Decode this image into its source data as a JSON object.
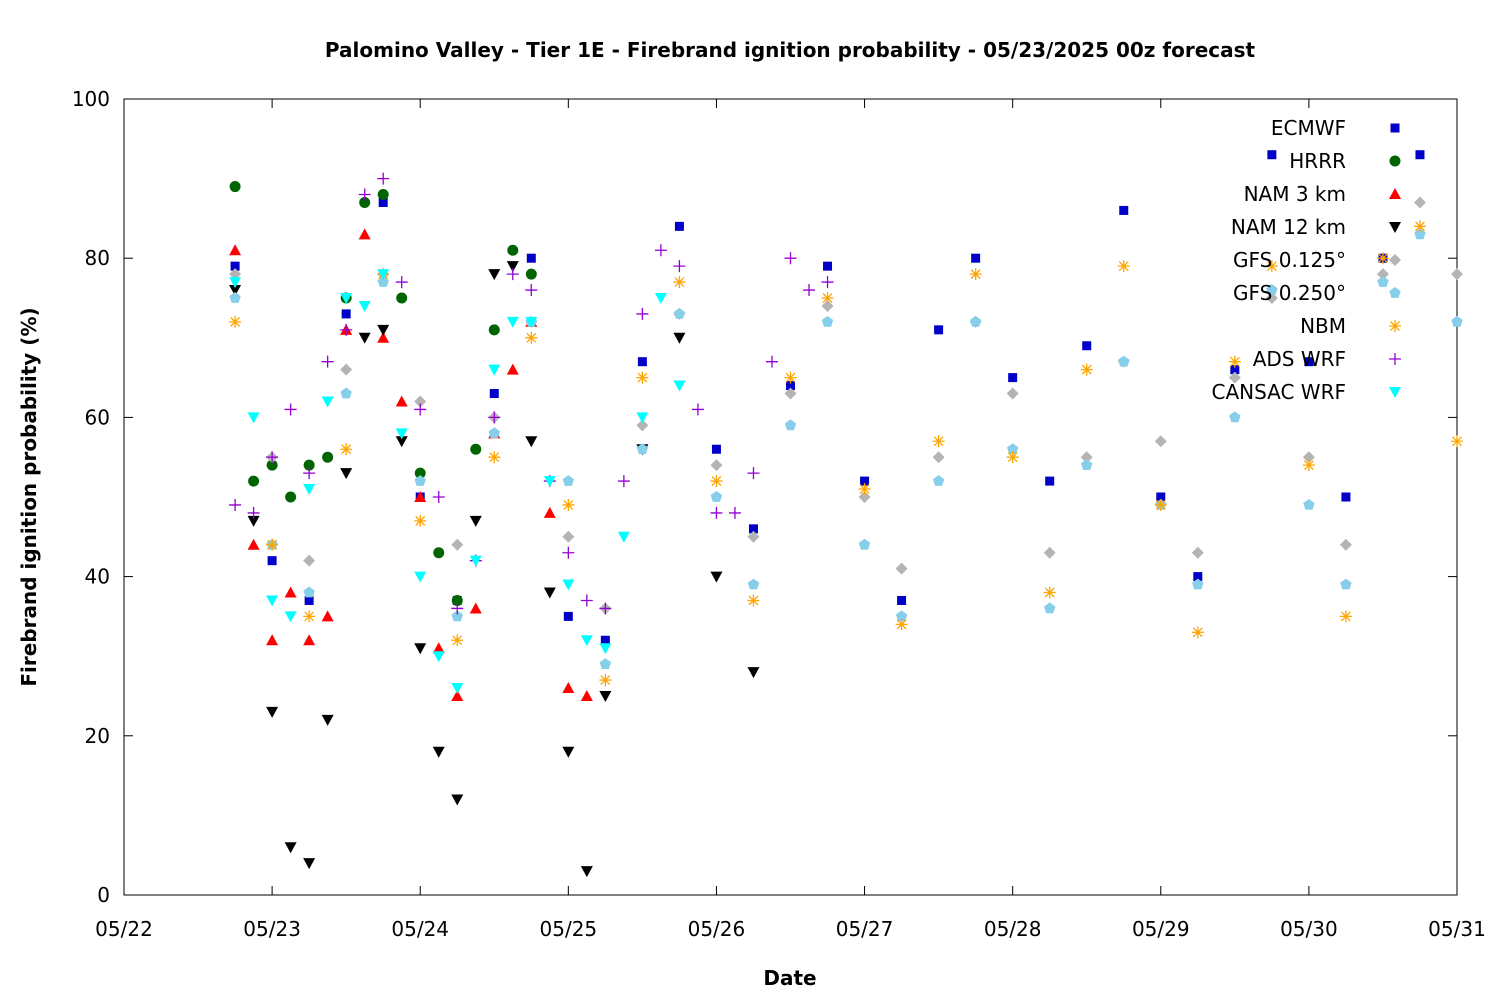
{
  "chart_data": {
    "type": "scatter",
    "title": "Palomino Valley - Tier 1E - Firebrand ignition probability - 05/23/2025 00z forecast",
    "xlabel": "Date",
    "ylabel": "Firebrand ignition probability (%)",
    "xlim": [
      "2025-05-22T00:00",
      "2025-05-31T00:00"
    ],
    "ylim": [
      0,
      100
    ],
    "x_ticks": [
      "05/22",
      "05/23",
      "05/24",
      "05/25",
      "05/26",
      "05/27",
      "05/28",
      "05/29",
      "05/30",
      "05/31"
    ],
    "y_ticks": [
      0,
      20,
      40,
      60,
      80,
      100
    ],
    "grid": false,
    "legend_position": "top-right",
    "series": [
      {
        "name": "ECMWF",
        "color": "#0000c8",
        "marker": "square",
        "x": [
          "2025-05-22T18:00",
          "2025-05-23T00:00",
          "2025-05-23T06:00",
          "2025-05-23T12:00",
          "2025-05-23T18:00",
          "2025-05-24T00:00",
          "2025-05-24T06:00",
          "2025-05-24T12:00",
          "2025-05-24T18:00",
          "2025-05-25T00:00",
          "2025-05-25T06:00",
          "2025-05-25T12:00",
          "2025-05-25T18:00",
          "2025-05-26T00:00",
          "2025-05-26T06:00",
          "2025-05-26T12:00",
          "2025-05-26T18:00",
          "2025-05-27T00:00",
          "2025-05-27T06:00",
          "2025-05-27T12:00",
          "2025-05-27T18:00",
          "2025-05-28T00:00",
          "2025-05-28T06:00",
          "2025-05-28T12:00",
          "2025-05-28T18:00",
          "2025-05-29T00:00",
          "2025-05-29T06:00",
          "2025-05-29T12:00",
          "2025-05-29T18:00",
          "2025-05-30T00:00",
          "2025-05-30T06:00",
          "2025-05-30T12:00",
          "2025-05-30T18:00"
        ],
        "y": [
          79,
          42,
          37,
          73,
          87,
          50,
          37,
          63,
          80,
          35,
          32,
          67,
          84,
          56,
          46,
          64,
          79,
          52,
          37,
          71,
          80,
          65,
          52,
          69,
          86,
          50,
          40,
          66,
          93,
          67,
          50,
          80,
          93
        ]
      },
      {
        "name": "HRRR",
        "color": "#006400",
        "marker": "circle",
        "x": [
          "2025-05-22T18:00",
          "2025-05-22T21:00",
          "2025-05-23T00:00",
          "2025-05-23T03:00",
          "2025-05-23T06:00",
          "2025-05-23T09:00",
          "2025-05-23T12:00",
          "2025-05-23T15:00",
          "2025-05-23T18:00",
          "2025-05-23T21:00",
          "2025-05-24T00:00",
          "2025-05-24T03:00",
          "2025-05-24T06:00",
          "2025-05-24T09:00",
          "2025-05-24T12:00",
          "2025-05-24T15:00",
          "2025-05-24T18:00"
        ],
        "y": [
          89,
          52,
          54,
          50,
          54,
          55,
          75,
          87,
          88,
          75,
          53,
          43,
          37,
          56,
          71,
          81,
          78
        ]
      },
      {
        "name": "NAM 3 km",
        "color": "#ff0000",
        "marker": "triangle-up",
        "x": [
          "2025-05-22T18:00",
          "2025-05-22T21:00",
          "2025-05-23T00:00",
          "2025-05-23T03:00",
          "2025-05-23T06:00",
          "2025-05-23T09:00",
          "2025-05-23T12:00",
          "2025-05-23T15:00",
          "2025-05-23T18:00",
          "2025-05-23T21:00",
          "2025-05-24T00:00",
          "2025-05-24T03:00",
          "2025-05-24T06:00",
          "2025-05-24T09:00",
          "2025-05-24T12:00",
          "2025-05-24T15:00",
          "2025-05-24T18:00",
          "2025-05-24T21:00",
          "2025-05-25T00:00",
          "2025-05-25T03:00"
        ],
        "y": [
          81,
          44,
          32,
          38,
          32,
          35,
          71,
          83,
          70,
          62,
          50,
          31,
          25,
          36,
          58,
          66,
          72,
          48,
          26,
          25
        ]
      },
      {
        "name": "NAM 12 km",
        "color": "#000000",
        "marker": "triangle-down",
        "x": [
          "2025-05-22T18:00",
          "2025-05-22T21:00",
          "2025-05-23T00:00",
          "2025-05-23T03:00",
          "2025-05-23T06:00",
          "2025-05-23T09:00",
          "2025-05-23T12:00",
          "2025-05-23T15:00",
          "2025-05-23T18:00",
          "2025-05-23T21:00",
          "2025-05-24T00:00",
          "2025-05-24T03:00",
          "2025-05-24T06:00",
          "2025-05-24T09:00",
          "2025-05-24T12:00",
          "2025-05-24T15:00",
          "2025-05-24T18:00",
          "2025-05-24T21:00",
          "2025-05-25T00:00",
          "2025-05-25T03:00",
          "2025-05-25T06:00",
          "2025-05-25T12:00",
          "2025-05-25T18:00",
          "2025-05-26T00:00",
          "2025-05-26T06:00"
        ],
        "y": [
          76,
          47,
          23,
          6,
          4,
          22,
          53,
          70,
          71,
          57,
          31,
          18,
          12,
          47,
          78,
          79,
          57,
          38,
          18,
          3,
          25,
          56,
          70,
          40,
          28
        ]
      },
      {
        "name": "GFS 0.125°",
        "color": "#b4b4b4",
        "marker": "diamond",
        "x": [
          "2025-05-22T18:00",
          "2025-05-23T00:00",
          "2025-05-23T06:00",
          "2025-05-23T12:00",
          "2025-05-23T18:00",
          "2025-05-24T00:00",
          "2025-05-24T06:00",
          "2025-05-24T12:00",
          "2025-05-24T18:00",
          "2025-05-25T00:00",
          "2025-05-25T06:00",
          "2025-05-25T12:00",
          "2025-05-25T18:00",
          "2025-05-26T00:00",
          "2025-05-26T06:00",
          "2025-05-26T12:00",
          "2025-05-26T18:00",
          "2025-05-27T00:00",
          "2025-05-27T06:00",
          "2025-05-27T12:00",
          "2025-05-27T18:00",
          "2025-05-28T00:00",
          "2025-05-28T06:00",
          "2025-05-28T12:00",
          "2025-05-28T18:00",
          "2025-05-29T00:00",
          "2025-05-29T06:00",
          "2025-05-29T12:00",
          "2025-05-29T18:00",
          "2025-05-30T00:00",
          "2025-05-30T06:00",
          "2025-05-30T12:00",
          "2025-05-30T18:00",
          "2025-05-31T00:00"
        ],
        "y": [
          78,
          55,
          42,
          66,
          78,
          62,
          44,
          60,
          72,
          45,
          36,
          59,
          73,
          54,
          45,
          63,
          74,
          50,
          41,
          55,
          72,
          63,
          43,
          55,
          67,
          57,
          43,
          65,
          75,
          55,
          44,
          78,
          87,
          78
        ]
      },
      {
        "name": "GFS 0.250°",
        "color": "#87ceeb",
        "marker": "pentagon",
        "x": [
          "2025-05-22T18:00",
          "2025-05-23T00:00",
          "2025-05-23T06:00",
          "2025-05-23T12:00",
          "2025-05-23T18:00",
          "2025-05-24T00:00",
          "2025-05-24T06:00",
          "2025-05-24T12:00",
          "2025-05-24T18:00",
          "2025-05-25T00:00",
          "2025-05-25T06:00",
          "2025-05-25T12:00",
          "2025-05-25T18:00",
          "2025-05-26T00:00",
          "2025-05-26T06:00",
          "2025-05-26T12:00",
          "2025-05-26T18:00",
          "2025-05-27T00:00",
          "2025-05-27T06:00",
          "2025-05-27T12:00",
          "2025-05-27T18:00",
          "2025-05-28T00:00",
          "2025-05-28T06:00",
          "2025-05-28T12:00",
          "2025-05-28T18:00",
          "2025-05-29T00:00",
          "2025-05-29T06:00",
          "2025-05-29T12:00",
          "2025-05-29T18:00",
          "2025-05-30T00:00",
          "2025-05-30T06:00",
          "2025-05-30T12:00",
          "2025-05-30T18:00",
          "2025-05-31T00:00"
        ],
        "y": [
          75,
          44,
          38,
          63,
          77,
          52,
          35,
          58,
          72,
          52,
          29,
          56,
          73,
          50,
          39,
          59,
          72,
          44,
          35,
          52,
          72,
          56,
          36,
          54,
          67,
          49,
          39,
          60,
          76,
          49,
          39,
          77,
          83,
          72
        ]
      },
      {
        "name": "NBM",
        "color": "#ffa500",
        "marker": "asterisk",
        "x": [
          "2025-05-22T18:00",
          "2025-05-23T00:00",
          "2025-05-23T06:00",
          "2025-05-23T12:00",
          "2025-05-23T18:00",
          "2025-05-24T00:00",
          "2025-05-24T06:00",
          "2025-05-24T12:00",
          "2025-05-24T18:00",
          "2025-05-25T00:00",
          "2025-05-25T06:00",
          "2025-05-25T12:00",
          "2025-05-25T18:00",
          "2025-05-26T00:00",
          "2025-05-26T06:00",
          "2025-05-26T12:00",
          "2025-05-26T18:00",
          "2025-05-27T00:00",
          "2025-05-27T06:00",
          "2025-05-27T12:00",
          "2025-05-27T18:00",
          "2025-05-28T00:00",
          "2025-05-28T06:00",
          "2025-05-28T12:00",
          "2025-05-28T18:00",
          "2025-05-29T00:00",
          "2025-05-29T06:00",
          "2025-05-29T12:00",
          "2025-05-29T18:00",
          "2025-05-30T00:00",
          "2025-05-30T06:00",
          "2025-05-30T12:00",
          "2025-05-30T18:00",
          "2025-05-31T00:00"
        ],
        "y": [
          72,
          44,
          35,
          56,
          78,
          47,
          32,
          55,
          70,
          49,
          27,
          65,
          77,
          52,
          37,
          65,
          75,
          51,
          34,
          57,
          78,
          55,
          38,
          66,
          79,
          49,
          33,
          67,
          79,
          54,
          35,
          80,
          84,
          57
        ]
      },
      {
        "name": "ADS WRF",
        "color": "#9400d3",
        "marker": "plus",
        "x": [
          "2025-05-22T18:00",
          "2025-05-22T21:00",
          "2025-05-23T00:00",
          "2025-05-23T03:00",
          "2025-05-23T06:00",
          "2025-05-23T09:00",
          "2025-05-23T12:00",
          "2025-05-23T15:00",
          "2025-05-23T18:00",
          "2025-05-23T21:00",
          "2025-05-24T00:00",
          "2025-05-24T03:00",
          "2025-05-24T06:00",
          "2025-05-24T09:00",
          "2025-05-24T12:00",
          "2025-05-24T15:00",
          "2025-05-24T18:00",
          "2025-05-24T21:00",
          "2025-05-25T00:00",
          "2025-05-25T03:00",
          "2025-05-25T06:00",
          "2025-05-25T09:00",
          "2025-05-25T12:00",
          "2025-05-25T15:00",
          "2025-05-25T18:00",
          "2025-05-25T21:00",
          "2025-05-26T00:00",
          "2025-05-26T03:00",
          "2025-05-26T06:00",
          "2025-05-26T09:00",
          "2025-05-26T12:00",
          "2025-05-26T15:00",
          "2025-05-26T18:00"
        ],
        "y": [
          49,
          48,
          55,
          61,
          53,
          67,
          71,
          88,
          90,
          77,
          61,
          50,
          36,
          42,
          60,
          78,
          76,
          52,
          43,
          37,
          36,
          52,
          73,
          81,
          79,
          61,
          48,
          48,
          53,
          67,
          80,
          76,
          77
        ]
      },
      {
        "name": "CANSAC WRF",
        "color": "#00ffff",
        "marker": "triangle-down",
        "x": [
          "2025-05-22T18:00",
          "2025-05-22T21:00",
          "2025-05-23T00:00",
          "2025-05-23T03:00",
          "2025-05-23T06:00",
          "2025-05-23T09:00",
          "2025-05-23T12:00",
          "2025-05-23T15:00",
          "2025-05-23T18:00",
          "2025-05-23T21:00",
          "2025-05-24T00:00",
          "2025-05-24T03:00",
          "2025-05-24T06:00",
          "2025-05-24T09:00",
          "2025-05-24T12:00",
          "2025-05-24T15:00",
          "2025-05-24T18:00",
          "2025-05-24T21:00",
          "2025-05-25T00:00",
          "2025-05-25T03:00",
          "2025-05-25T06:00",
          "2025-05-25T09:00",
          "2025-05-25T12:00",
          "2025-05-25T15:00",
          "2025-05-25T18:00"
        ],
        "y": [
          77,
          60,
          37,
          35,
          51,
          62,
          75,
          74,
          78,
          58,
          40,
          30,
          26,
          42,
          66,
          72,
          72,
          52,
          39,
          32,
          31,
          45,
          60,
          75,
          64
        ]
      }
    ]
  }
}
